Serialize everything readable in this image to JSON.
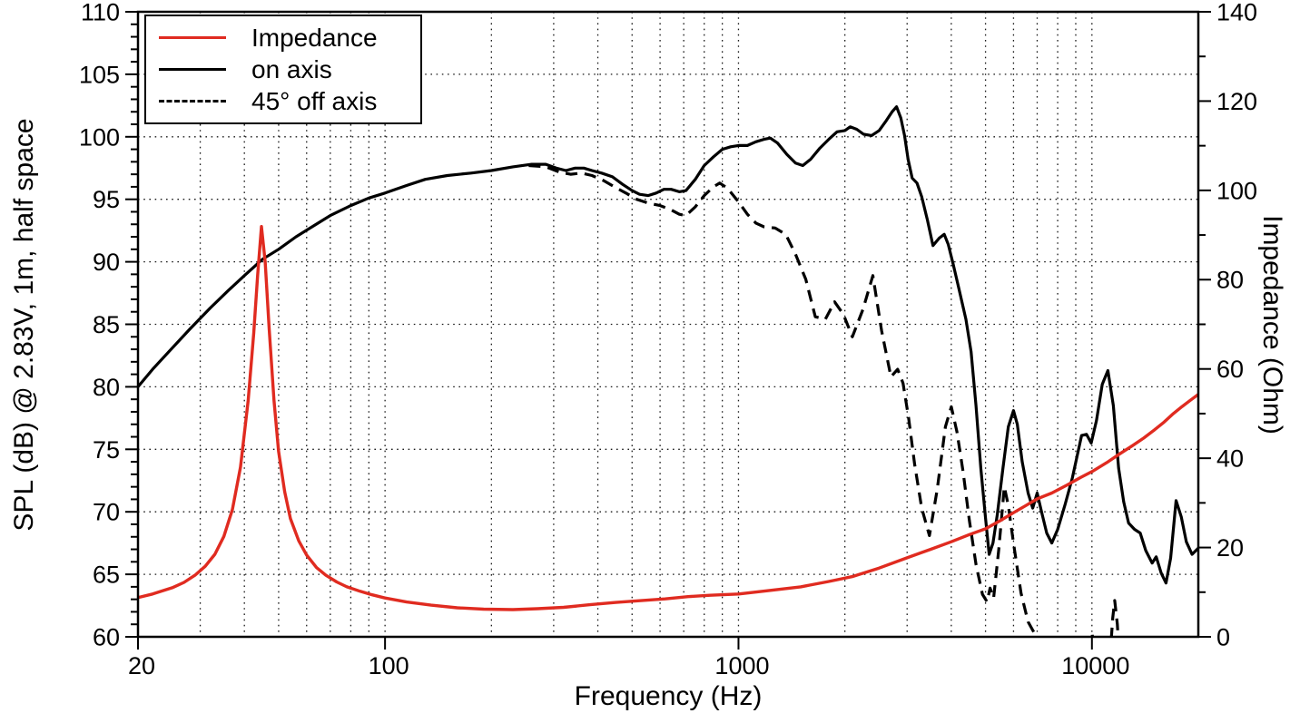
{
  "figure": {
    "background": "#ffffff",
    "axis_color": "#000000",
    "grid_color": "#1a1a1a",
    "accent_red": "#e02b20"
  },
  "chart_data": {
    "type": "line",
    "title": "",
    "grid": "dotted",
    "x_axis": {
      "label": "Frequency (Hz)",
      "scale": "log",
      "range": [
        20,
        20000
      ],
      "ticks": [
        20,
        100,
        1000,
        10000
      ],
      "tick_labels": [
        "20",
        "100",
        "1000",
        "10000"
      ],
      "gridlines": [
        30,
        40,
        50,
        60,
        70,
        80,
        90,
        100,
        200,
        300,
        400,
        500,
        600,
        700,
        800,
        900,
        1000,
        2000,
        3000,
        4000,
        5000,
        6000,
        7000,
        8000,
        9000,
        10000
      ]
    },
    "y_axis_left": {
      "label": "SPL (dB) @ 2.83V, 1m, half space",
      "range": [
        60,
        110
      ],
      "major_step": 5,
      "minor_step": 1,
      "ticks": [
        60,
        65,
        70,
        75,
        80,
        85,
        90,
        95,
        100,
        105,
        110
      ],
      "tick_labels": [
        "60",
        "65",
        "70",
        "75",
        "80",
        "85",
        "90",
        "95",
        "100",
        "105",
        "110"
      ],
      "gridlines": [
        65,
        70,
        75,
        80,
        85,
        90,
        95,
        100,
        105
      ]
    },
    "y_axis_right": {
      "label": "Impedance (Ohm)",
      "range": [
        0,
        140
      ],
      "major_step": 20,
      "minor_step": 10,
      "ticks": [
        0,
        20,
        40,
        60,
        80,
        100,
        120,
        140
      ],
      "tick_labels": [
        "0",
        "20",
        "40",
        "60",
        "80",
        "100",
        "120",
        "140"
      ]
    },
    "legend": {
      "position": "top-left",
      "items": [
        {
          "label": "Impedance",
          "color": "#e02b20",
          "style": "solid"
        },
        {
          "label": "on axis",
          "color": "#000000",
          "style": "solid"
        },
        {
          "label": "45° off axis",
          "color": "#000000",
          "style": "dashed"
        }
      ]
    },
    "series": [
      {
        "name": "Impedance",
        "axis": "right",
        "unit": "Ohm",
        "color": "#e02b20",
        "style": "solid",
        "points": [
          [
            20,
            8.8
          ],
          [
            22,
            9.6
          ],
          [
            25,
            11.0
          ],
          [
            27,
            12.2
          ],
          [
            29,
            13.8
          ],
          [
            31,
            15.8
          ],
          [
            33,
            18.5
          ],
          [
            35,
            22.5
          ],
          [
            37,
            28.5
          ],
          [
            39,
            38.0
          ],
          [
            41,
            53.0
          ],
          [
            42.5,
            68.0
          ],
          [
            43.6,
            81.0
          ],
          [
            44.7,
            91.9
          ],
          [
            45.8,
            84.0
          ],
          [
            47,
            69.0
          ],
          [
            48.5,
            53.0
          ],
          [
            50,
            41.5
          ],
          [
            52,
            32.5
          ],
          [
            54,
            26.5
          ],
          [
            57,
            21.5
          ],
          [
            60,
            18.3
          ],
          [
            64,
            15.5
          ],
          [
            68,
            13.8
          ],
          [
            73,
            12.3
          ],
          [
            78,
            11.2
          ],
          [
            85,
            10.2
          ],
          [
            92,
            9.4
          ],
          [
            100,
            8.7
          ],
          [
            115,
            7.8
          ],
          [
            135,
            7.1
          ],
          [
            160,
            6.5
          ],
          [
            190,
            6.2
          ],
          [
            230,
            6.1
          ],
          [
            270,
            6.3
          ],
          [
            320,
            6.6
          ],
          [
            380,
            7.2
          ],
          [
            450,
            7.7
          ],
          [
            530,
            8.1
          ],
          [
            620,
            8.5
          ],
          [
            720,
            9.0
          ],
          [
            830,
            9.3
          ],
          [
            1000,
            9.6
          ],
          [
            1200,
            10.3
          ],
          [
            1500,
            11.2
          ],
          [
            1800,
            12.4
          ],
          [
            2100,
            13.5
          ],
          [
            2500,
            15.4
          ],
          [
            3000,
            17.7
          ],
          [
            3500,
            19.6
          ],
          [
            4000,
            21.3
          ],
          [
            4500,
            22.9
          ],
          [
            5000,
            24.2
          ],
          [
            5500,
            26.0
          ],
          [
            6000,
            27.8
          ],
          [
            6500,
            29.4
          ],
          [
            7000,
            30.9
          ],
          [
            7700,
            32.2
          ],
          [
            8500,
            34.0
          ],
          [
            9300,
            35.7
          ],
          [
            10000,
            37.0
          ],
          [
            11000,
            39.0
          ],
          [
            12000,
            41.0
          ],
          [
            13000,
            42.8
          ],
          [
            14000,
            44.5
          ],
          [
            15000,
            46.3
          ],
          [
            16000,
            48.1
          ],
          [
            17000,
            50.0
          ],
          [
            18000,
            51.6
          ],
          [
            19000,
            53.0
          ],
          [
            20000,
            54.3
          ]
        ]
      },
      {
        "name": "on axis",
        "axis": "left",
        "unit": "dB",
        "color": "#000000",
        "style": "solid",
        "points": [
          [
            20,
            80.0
          ],
          [
            22,
            81.4
          ],
          [
            25,
            83.1
          ],
          [
            28,
            84.6
          ],
          [
            32,
            86.3
          ],
          [
            36,
            87.7
          ],
          [
            40,
            88.9
          ],
          [
            45,
            90.2
          ],
          [
            50,
            91.0
          ],
          [
            56,
            92.0
          ],
          [
            63,
            92.9
          ],
          [
            70,
            93.7
          ],
          [
            80,
            94.5
          ],
          [
            90,
            95.1
          ],
          [
            100,
            95.5
          ],
          [
            115,
            96.1
          ],
          [
            130,
            96.6
          ],
          [
            150,
            96.9
          ],
          [
            175,
            97.1
          ],
          [
            200,
            97.3
          ],
          [
            230,
            97.6
          ],
          [
            260,
            97.8
          ],
          [
            285,
            97.8
          ],
          [
            305,
            97.5
          ],
          [
            325,
            97.3
          ],
          [
            345,
            97.5
          ],
          [
            365,
            97.5
          ],
          [
            385,
            97.3
          ],
          [
            410,
            97.1
          ],
          [
            440,
            96.8
          ],
          [
            470,
            96.2
          ],
          [
            500,
            95.7
          ],
          [
            525,
            95.4
          ],
          [
            555,
            95.3
          ],
          [
            585,
            95.5
          ],
          [
            615,
            95.8
          ],
          [
            645,
            95.8
          ],
          [
            680,
            95.6
          ],
          [
            710,
            95.7
          ],
          [
            755,
            96.6
          ],
          [
            800,
            97.7
          ],
          [
            850,
            98.4
          ],
          [
            900,
            99.0
          ],
          [
            950,
            99.2
          ],
          [
            1000,
            99.3
          ],
          [
            1060,
            99.3
          ],
          [
            1120,
            99.6
          ],
          [
            1180,
            99.8
          ],
          [
            1230,
            99.9
          ],
          [
            1290,
            99.5
          ],
          [
            1370,
            98.6
          ],
          [
            1450,
            97.9
          ],
          [
            1520,
            97.7
          ],
          [
            1600,
            98.2
          ],
          [
            1700,
            99.1
          ],
          [
            1800,
            99.8
          ],
          [
            1900,
            100.4
          ],
          [
            2000,
            100.5
          ],
          [
            2070,
            100.8
          ],
          [
            2160,
            100.6
          ],
          [
            2260,
            100.2
          ],
          [
            2380,
            100.1
          ],
          [
            2500,
            100.5
          ],
          [
            2620,
            101.3
          ],
          [
            2720,
            102.0
          ],
          [
            2800,
            102.4
          ],
          [
            2880,
            101.5
          ],
          [
            2950,
            100.1
          ],
          [
            3020,
            98.2
          ],
          [
            3100,
            96.7
          ],
          [
            3200,
            96.3
          ],
          [
            3300,
            95.2
          ],
          [
            3420,
            93.4
          ],
          [
            3550,
            91.3
          ],
          [
            3700,
            91.9
          ],
          [
            3820,
            92.2
          ],
          [
            3920,
            91.4
          ],
          [
            4050,
            89.8
          ],
          [
            4200,
            87.9
          ],
          [
            4400,
            85.4
          ],
          [
            4550,
            82.8
          ],
          [
            4700,
            78.5
          ],
          [
            4850,
            73.5
          ],
          [
            5000,
            69.5
          ],
          [
            5120,
            66.6
          ],
          [
            5250,
            67.5
          ],
          [
            5400,
            69.8
          ],
          [
            5600,
            73.5
          ],
          [
            5800,
            76.8
          ],
          [
            6000,
            78.1
          ],
          [
            6150,
            77.0
          ],
          [
            6350,
            74.0
          ],
          [
            6600,
            71.5
          ],
          [
            6800,
            70.3
          ],
          [
            7000,
            71.5
          ],
          [
            7200,
            70.0
          ],
          [
            7450,
            68.3
          ],
          [
            7700,
            67.5
          ],
          [
            8000,
            68.6
          ],
          [
            8400,
            70.6
          ],
          [
            8800,
            72.7
          ],
          [
            9100,
            74.6
          ],
          [
            9350,
            76.1
          ],
          [
            9650,
            76.2
          ],
          [
            9950,
            75.5
          ],
          [
            10300,
            77.3
          ],
          [
            10700,
            80.2
          ],
          [
            11100,
            81.3
          ],
          [
            11500,
            78.5
          ],
          [
            11900,
            73.5
          ],
          [
            12300,
            70.8
          ],
          [
            12700,
            69.1
          ],
          [
            13200,
            68.6
          ],
          [
            13700,
            68.3
          ],
          [
            14200,
            66.9
          ],
          [
            14800,
            65.9
          ],
          [
            15200,
            66.4
          ],
          [
            15700,
            65.1
          ],
          [
            16200,
            64.3
          ],
          [
            16700,
            66.3
          ],
          [
            17300,
            70.9
          ],
          [
            17900,
            69.6
          ],
          [
            18500,
            67.6
          ],
          [
            19200,
            66.6
          ],
          [
            20000,
            67.1
          ]
        ]
      },
      {
        "name": "45° off axis",
        "axis": "left",
        "unit": "dB",
        "color": "#000000",
        "style": "dashed",
        "points": [
          [
            255,
            97.7
          ],
          [
            285,
            97.6
          ],
          [
            310,
            97.2
          ],
          [
            335,
            97.0
          ],
          [
            360,
            97.1
          ],
          [
            385,
            96.9
          ],
          [
            415,
            96.5
          ],
          [
            445,
            96.0
          ],
          [
            480,
            95.5
          ],
          [
            515,
            95.0
          ],
          [
            555,
            94.7
          ],
          [
            600,
            94.5
          ],
          [
            640,
            94.2
          ],
          [
            680,
            93.8
          ],
          [
            710,
            93.7
          ],
          [
            755,
            94.4
          ],
          [
            800,
            95.3
          ],
          [
            850,
            96.0
          ],
          [
            885,
            96.3
          ],
          [
            930,
            95.9
          ],
          [
            1000,
            94.8
          ],
          [
            1060,
            93.8
          ],
          [
            1120,
            93.1
          ],
          [
            1180,
            92.8
          ],
          [
            1270,
            92.7
          ],
          [
            1360,
            92.2
          ],
          [
            1450,
            90.6
          ],
          [
            1550,
            88.6
          ],
          [
            1650,
            85.6
          ],
          [
            1760,
            85.4
          ],
          [
            1870,
            86.8
          ],
          [
            1980,
            85.8
          ],
          [
            2100,
            84.0
          ],
          [
            2250,
            86.2
          ],
          [
            2400,
            88.9
          ],
          [
            2540,
            84.5
          ],
          [
            2700,
            80.8
          ],
          [
            2820,
            81.4
          ],
          [
            2920,
            80.3
          ],
          [
            3030,
            77.5
          ],
          [
            3150,
            73.8
          ],
          [
            3300,
            70.3
          ],
          [
            3470,
            68.1
          ],
          [
            3650,
            71.8
          ],
          [
            3850,
            76.8
          ],
          [
            4000,
            78.4
          ],
          [
            4150,
            76.4
          ],
          [
            4320,
            73.2
          ],
          [
            4500,
            69.3
          ],
          [
            4700,
            65.8
          ],
          [
            4900,
            63.4
          ],
          [
            5050,
            62.8
          ],
          [
            5150,
            63.9
          ],
          [
            5270,
            63.1
          ],
          [
            5450,
            67.0
          ],
          [
            5650,
            72.0
          ],
          [
            5800,
            70.5
          ],
          [
            6000,
            67.5
          ],
          [
            6300,
            63.5
          ],
          [
            6600,
            61.2
          ],
          [
            6900,
            60.2
          ],
          [
            7100,
            59.2
          ],
          [
            7300,
            58.3
          ],
          [
            9800,
            58.3
          ],
          [
            10000,
            60.4
          ],
          [
            10200,
            58.3
          ],
          [
            11250,
            58.3
          ],
          [
            11450,
            61.5
          ],
          [
            11600,
            62.9
          ],
          [
            11800,
            61.0
          ],
          [
            12000,
            57.5
          ]
        ]
      }
    ]
  }
}
